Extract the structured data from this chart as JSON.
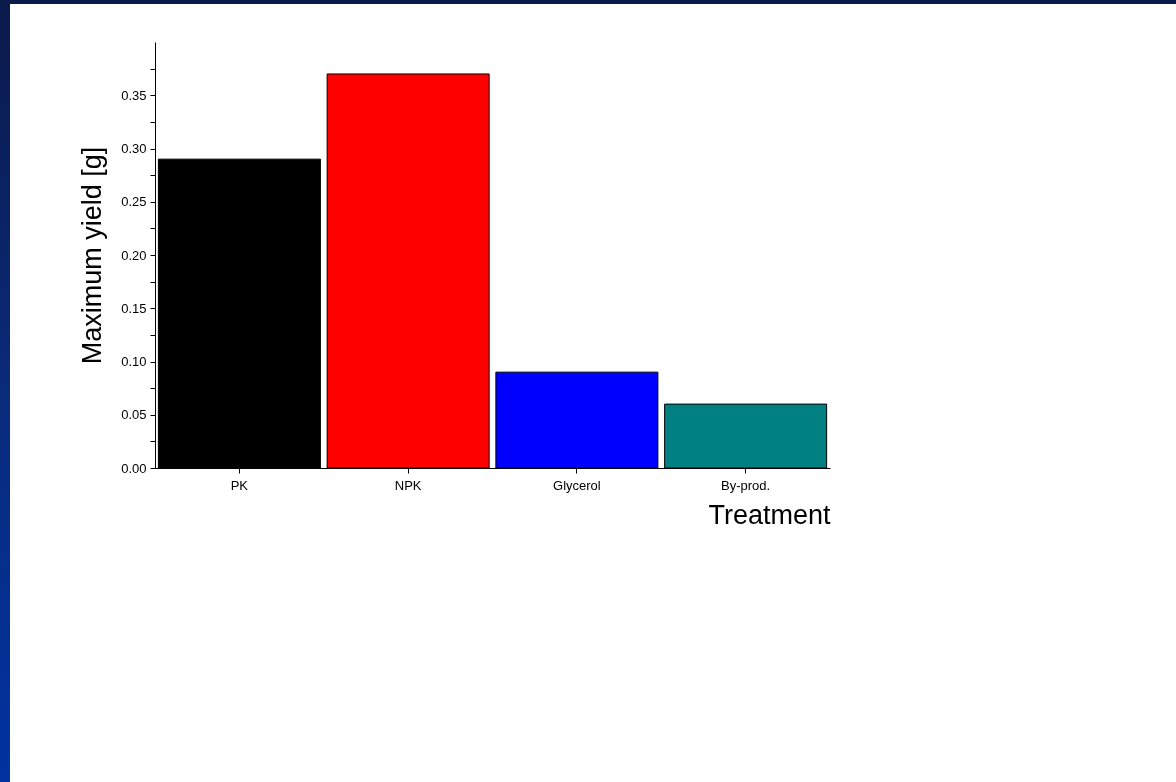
{
  "chart_data": {
    "type": "bar",
    "xlabel": "Treatment",
    "ylabel": "Maximum yield [g]",
    "categories": [
      "PK",
      "NPK",
      "Glycerol",
      "By-prod."
    ],
    "values": [
      0.29,
      0.37,
      0.09,
      0.06
    ],
    "colors": [
      "#000000",
      "#ff0000",
      "#0000ff",
      "#008080"
    ],
    "ylim": [
      0,
      0.4
    ],
    "yticks": [
      {
        "value": 0,
        "label": "0.00"
      },
      {
        "value": 0.025,
        "label": null
      },
      {
        "value": 0.05,
        "label": "0.05"
      },
      {
        "value": 0.075,
        "label": null
      },
      {
        "value": 0.1,
        "label": "0.10"
      },
      {
        "value": 0.125,
        "label": null
      },
      {
        "value": 0.15,
        "label": "0.15"
      },
      {
        "value": 0.175,
        "label": null
      },
      {
        "value": 0.2,
        "label": "0.20"
      },
      {
        "value": 0.225,
        "label": null
      },
      {
        "value": 0.25,
        "label": "0.25"
      },
      {
        "value": 0.275,
        "label": null
      },
      {
        "value": 0.3,
        "label": "0.30"
      },
      {
        "value": 0.325,
        "label": null
      },
      {
        "value": 0.35,
        "label": "0.35"
      },
      {
        "value": 0.375,
        "label": null
      }
    ],
    "grid": false
  }
}
